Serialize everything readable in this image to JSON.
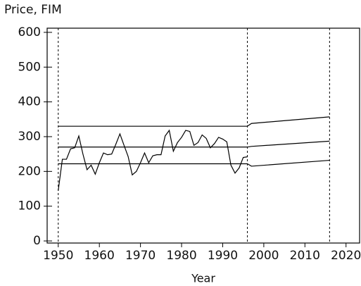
{
  "chart_data": {
    "type": "line",
    "y_label": "Price, FIM",
    "x_label": "Year",
    "xlim": [
      1947.3,
      2023.3
    ],
    "ylim": [
      -6,
      612
    ],
    "xticks": [
      1950,
      1960,
      1970,
      1980,
      1990,
      2000,
      2010,
      2020
    ],
    "yticks": [
      0,
      100,
      200,
      300,
      400,
      500,
      600
    ],
    "vlines": [
      1950,
      1996,
      2016
    ],
    "color": "#000000",
    "series": [
      {
        "x": [
          1950,
          1951,
          1952,
          1953,
          1954,
          1955,
          1956,
          1957,
          1958,
          1959,
          1960,
          1961,
          1962,
          1963,
          1964,
          1965,
          1966,
          1967,
          1968,
          1969,
          1970,
          1971,
          1972,
          1973,
          1974,
          1975,
          1976,
          1977,
          1978,
          1979,
          1980,
          1981,
          1982,
          1983,
          1984,
          1985,
          1986,
          1987,
          1988,
          1989,
          1990,
          1991,
          1992,
          1993,
          1994,
          1995,
          1996
        ],
        "values": [
          145,
          235,
          235,
          265,
          268,
          302,
          250,
          205,
          218,
          192,
          225,
          253,
          248,
          250,
          278,
          308,
          275,
          243,
          190,
          200,
          225,
          253,
          225,
          245,
          248,
          248,
          302,
          318,
          258,
          283,
          298,
          318,
          315,
          275,
          283,
          305,
          295,
          268,
          280,
          298,
          293,
          285,
          218,
          195,
          210,
          240,
          242
        ]
      },
      {
        "x": [
          1950,
          1996,
          1997,
          2016
        ],
        "values": [
          330,
          330,
          338,
          357
        ]
      },
      {
        "x": [
          1950,
          1996,
          1997,
          2016
        ],
        "values": [
          270,
          270,
          272,
          287
        ]
      },
      {
        "x": [
          1950,
          1996,
          1997,
          2016
        ],
        "values": [
          222,
          222,
          215,
          232
        ]
      }
    ]
  }
}
